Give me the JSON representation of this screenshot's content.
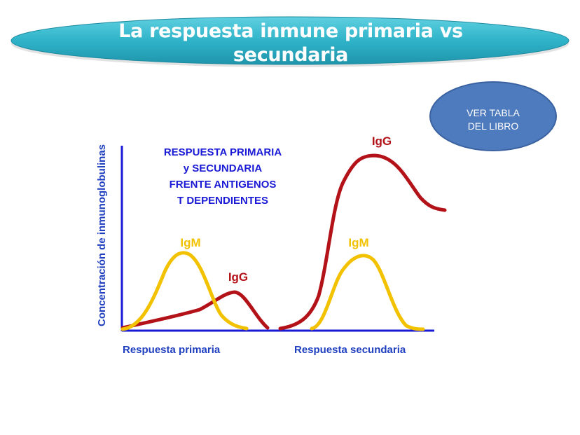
{
  "slide": {
    "title_line1": "La respuesta inmune primaria vs",
    "title_line2": "secundaria",
    "note_line1": "VER TABLA",
    "note_line2": "DEL LIBRO"
  },
  "diagram": {
    "ylabel": "Concentración de inmunoglobulinas",
    "heading": [
      "RESPUESTA PRIMARIA",
      "y SECUNDARIA",
      "FRENTE ANTIGENOS",
      "T DEPENDIENTES"
    ],
    "primary_label": "Respuesta primaria",
    "secondary_label": "Respuesta secundaria",
    "igm_primary_label": "IgM",
    "igg_primary_label": "IgG",
    "igm_secondary_label": "IgM",
    "igg_secondary_label": "IgG"
  },
  "colors": {
    "banner": "#2fb3c9",
    "note": "#4e7bbd",
    "axis": "#1a1ad6",
    "heading": "#1a1ad6",
    "igm": "#f2c200",
    "igg": "#b31218"
  }
}
